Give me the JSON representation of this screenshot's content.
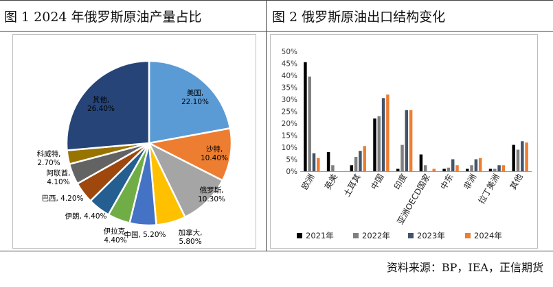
{
  "figure1": {
    "title": "图 1   2024 年俄罗斯原油产量占比",
    "chart_data": {
      "type": "pie",
      "slices": [
        {
          "label": "美国",
          "value": 22.1,
          "value_text": "22.10%",
          "color": "#5b9bd5"
        },
        {
          "label": "沙特",
          "value": 10.4,
          "value_text": "10.40%",
          "color": "#ed7d31"
        },
        {
          "label": "俄罗斯",
          "value": 10.3,
          "value_text": "10.30%",
          "color": "#a5a5a5"
        },
        {
          "label": "加拿大",
          "value": 5.8,
          "value_text": "5.80%",
          "color": "#ffc000"
        },
        {
          "label": "中国",
          "value": 5.2,
          "value_text": "5.20%",
          "color": "#4472c4"
        },
        {
          "label": "伊拉克",
          "value": 4.4,
          "value_text": "4.40%",
          "color": "#70ad47"
        },
        {
          "label": "伊朗",
          "value": 4.4,
          "value_text": "4.40%",
          "color": "#255e91"
        },
        {
          "label": "巴西",
          "value": 4.2,
          "value_text": "4.20%",
          "color": "#9e480e"
        },
        {
          "label": "阿联酋",
          "value": 4.1,
          "value_text": "4.10%",
          "color": "#636363"
        },
        {
          "label": "科威特",
          "value": 2.7,
          "value_text": "2.70%",
          "color": "#997300"
        },
        {
          "label": "其他",
          "value": 26.4,
          "value_text": "26.40%",
          "color": "#264478"
        }
      ]
    }
  },
  "figure2": {
    "title": "图 2   俄罗斯原油出口结构变化",
    "chart_data": {
      "type": "bar",
      "categories": [
        "欧洲",
        "英美",
        "土耳其",
        "中国",
        "印度",
        "亚洲OECD国家",
        "中东",
        "非洲",
        "拉丁美洲",
        "其他"
      ],
      "ylim": [
        0,
        50
      ],
      "y_ticks": [
        "0%",
        "5%",
        "10%",
        "15%",
        "20%",
        "25%",
        "30%",
        "35%",
        "40%",
        "45%",
        "50%"
      ],
      "series": [
        {
          "name": "2021年",
          "color": "#000000",
          "values": [
            45.5,
            8.0,
            2.5,
            22.0,
            1.0,
            7.0,
            1.0,
            1.0,
            1.0,
            11.0
          ]
        },
        {
          "name": "2022年",
          "color": "#7f7f7f",
          "values": [
            39.5,
            2.5,
            6.0,
            23.0,
            11.0,
            2.5,
            1.5,
            2.5,
            1.0,
            9.0
          ]
        },
        {
          "name": "2023年",
          "color": "#44546a",
          "values": [
            7.5,
            0,
            8.5,
            30.5,
            25.5,
            0,
            5.0,
            5.0,
            2.5,
            12.5
          ]
        },
        {
          "name": "2024年",
          "color": "#ed7d31",
          "values": [
            5.5,
            0,
            10.5,
            32.0,
            25.5,
            1.0,
            2.5,
            5.5,
            2.5,
            12.0
          ]
        }
      ]
    }
  },
  "source": "资料来源：BP，IEA，正信期货"
}
